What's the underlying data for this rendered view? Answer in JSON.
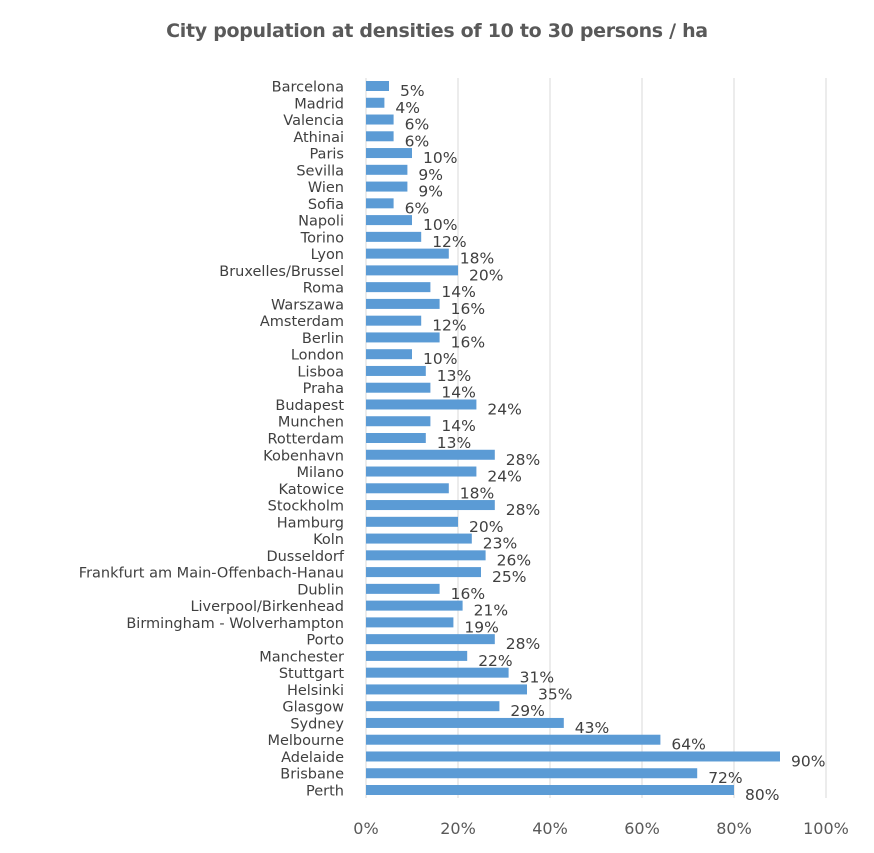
{
  "chart_data": {
    "type": "bar",
    "orientation": "horizontal",
    "title": "City population at densities of 10 to 30 persons / ha",
    "xlabel": "",
    "ylabel": "",
    "xlim": [
      0,
      100
    ],
    "grid": true,
    "bar_color": "#5b9bd5",
    "gridline_color": "#d9d9d9",
    "ticks": [
      {
        "value": 0,
        "label": "0%"
      },
      {
        "value": 20,
        "label": "20%"
      },
      {
        "value": 40,
        "label": "40%"
      },
      {
        "value": 60,
        "label": "60%"
      },
      {
        "value": 80,
        "label": "80%"
      },
      {
        "value": 100,
        "label": "100%"
      }
    ],
    "categories": [
      "Barcelona",
      "Madrid",
      "Valencia",
      "Athinai",
      "Paris",
      "Sevilla",
      "Wien",
      "Sofia",
      "Napoli",
      "Torino",
      "Lyon",
      "Bruxelles/Brussel",
      "Roma",
      "Warszawa",
      "Amsterdam",
      "Berlin",
      "London",
      "Lisboa",
      "Praha",
      "Budapest",
      "Munchen",
      "Rotterdam",
      "Kobenhavn",
      "Milano",
      "Katowice",
      "Stockholm",
      "Hamburg",
      "Koln",
      "Dusseldorf",
      "Frankfurt am Main-Offenbach-Hanau",
      "Dublin",
      "Liverpool/Birkenhead",
      "Birmingham - Wolverhampton",
      "Porto",
      "Manchester",
      "Stuttgart",
      "Helsinki",
      "Glasgow",
      "Sydney",
      "Melbourne",
      "Adelaide",
      "Brisbane",
      "Perth"
    ],
    "values": [
      5,
      4,
      6,
      6,
      10,
      9,
      9,
      6,
      10,
      12,
      18,
      20,
      14,
      16,
      12,
      16,
      10,
      13,
      14,
      24,
      14,
      13,
      28,
      24,
      18,
      28,
      20,
      23,
      26,
      25,
      16,
      21,
      19,
      28,
      22,
      31,
      35,
      29,
      43,
      64,
      90,
      72,
      80
    ],
    "labels": [
      "5%",
      "4%",
      "6%",
      "6%",
      "10%",
      "9%",
      "9%",
      "6%",
      "10%",
      "12%",
      "18%",
      "20%",
      "14%",
      "16%",
      "12%",
      "16%",
      "10%",
      "13%",
      "14%",
      "24%",
      "14%",
      "13%",
      "28%",
      "24%",
      "18%",
      "28%",
      "20%",
      "23%",
      "26%",
      "25%",
      "16%",
      "21%",
      "19%",
      "28%",
      "22%",
      "31%",
      "35%",
      "29%",
      "43%",
      "64%",
      "90%",
      "72%",
      "80%"
    ]
  }
}
